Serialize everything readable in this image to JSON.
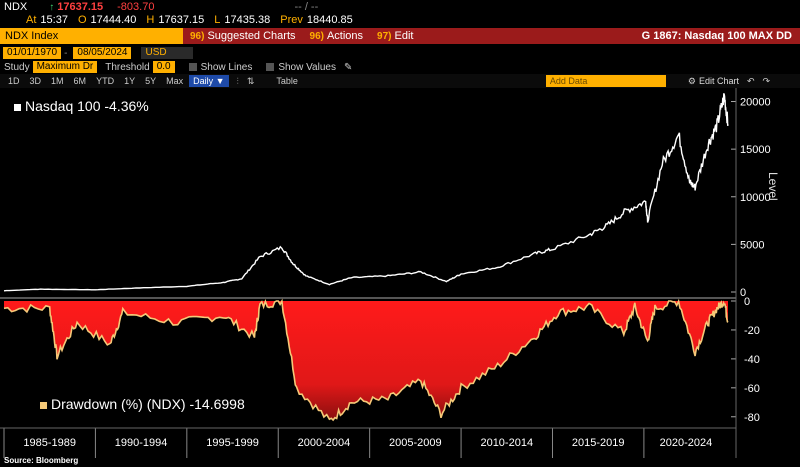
{
  "quote": {
    "ticker": "NDX",
    "arrow": "↑",
    "price": "17637.15",
    "change": "-803.70",
    "symbol": "-- / --",
    "at_label": "At",
    "at": "15:37",
    "open": "17444.40",
    "high_label": "H",
    "high": "17637.15",
    "low_label": "L",
    "low": "17435.38",
    "prev_label": "Prev",
    "prev": "18440.85"
  },
  "command_bar": {
    "security": "NDX Index",
    "items": [
      {
        "num": "96)",
        "label": "Suggested Charts"
      },
      {
        "num": "96)",
        "label": "Actions"
      },
      {
        "num": "97)",
        "label": "Edit"
      }
    ],
    "title": "G 1867: Nasdaq 100 MAX DD"
  },
  "dates": {
    "start": "01/01/1970",
    "end": "08/05/2024",
    "currency": "USD"
  },
  "study": {
    "label": "Study",
    "value": "Maximum Dr",
    "threshold_label": "Threshold",
    "threshold": "0.0",
    "show_lines": "Show Lines",
    "show_values": "Show Values"
  },
  "period": {
    "buttons": [
      "1D",
      "3D",
      "1M",
      "6M",
      "YTD",
      "1Y",
      "5Y",
      "Max"
    ],
    "frequency": "Daily",
    "table": "Table",
    "add_data": "Add Data",
    "edit_chart": "Edit Chart"
  },
  "legend": {
    "top": "Nasdaq 100 -4.36%",
    "bottom": "Drawdown (%) (NDX) -14.6998"
  },
  "axes": {
    "level_label": "Level",
    "upper_ticks": [
      "20000",
      "15000",
      "10000",
      "5000",
      "0"
    ],
    "lower_ticks": [
      "0",
      "-20",
      "-40",
      "-60",
      "-80"
    ],
    "x_labels": [
      "1985-1989",
      "1990-1994",
      "1995-1999",
      "2000-2004",
      "2005-2009",
      "2010-2014",
      "2015-2019",
      "2020-2024"
    ]
  },
  "source": "Source: Bloomberg",
  "colors": {
    "amber": "#ffb000",
    "price_line": "#ffffff",
    "drawdown_line": "#f5c978",
    "drawdown_fill": "#ff1a1a"
  },
  "chart_data": {
    "type": "line",
    "level_series": {
      "name": "Nasdaq 100",
      "x": [
        1985,
        1987,
        1990,
        1992,
        1995,
        1997,
        1998,
        1999,
        2000.2,
        2000.8,
        2001.5,
        2002.8,
        2004,
        2006,
        2007.8,
        2009.2,
        2010,
        2012,
        2014,
        2015,
        2017,
        2018,
        2019,
        2020.1,
        2020.2,
        2021,
        2021.9,
        2022.5,
        2022.8,
        2023.5,
        2024,
        2024.4,
        2024.6
      ],
      "y": [
        130,
        300,
        230,
        400,
        600,
        1000,
        1400,
        3700,
        4700,
        3000,
        1700,
        800,
        1500,
        1700,
        2100,
        1100,
        1900,
        2600,
        4000,
        4500,
        6000,
        7000,
        8500,
        9500,
        7500,
        13500,
        16500,
        11500,
        11000,
        15500,
        17500,
        20600,
        17600
      ]
    },
    "drawdown_series": {
      "name": "Drawdown (%) (NDX)",
      "x": [
        1985,
        1987.5,
        1987.9,
        1989,
        1990.8,
        1991.5,
        1994.5,
        1997,
        1998.7,
        1999,
        2000.2,
        2001,
        2002.8,
        2004,
        2006,
        2007.8,
        2008.9,
        2010,
        2012,
        2014,
        2015.3,
        2017,
        2018.9,
        2019.5,
        2020.2,
        2020.6,
        2021.9,
        2022.8,
        2023.5,
        2024,
        2024.4,
        2024.6
      ],
      "y": [
        -5,
        -5,
        -38,
        -15,
        -30,
        -8,
        -15,
        -10,
        -25,
        -3,
        0,
        -60,
        -83,
        -70,
        -68,
        -55,
        -78,
        -60,
        -45,
        -25,
        -8,
        -4,
        -22,
        -4,
        -28,
        -5,
        0,
        -35,
        -15,
        -5,
        0,
        -14.7
      ]
    },
    "y_upper": [
      0,
      21000
    ],
    "y_lower": [
      -85,
      0
    ],
    "x_range": [
      1985,
      2024.6
    ]
  }
}
